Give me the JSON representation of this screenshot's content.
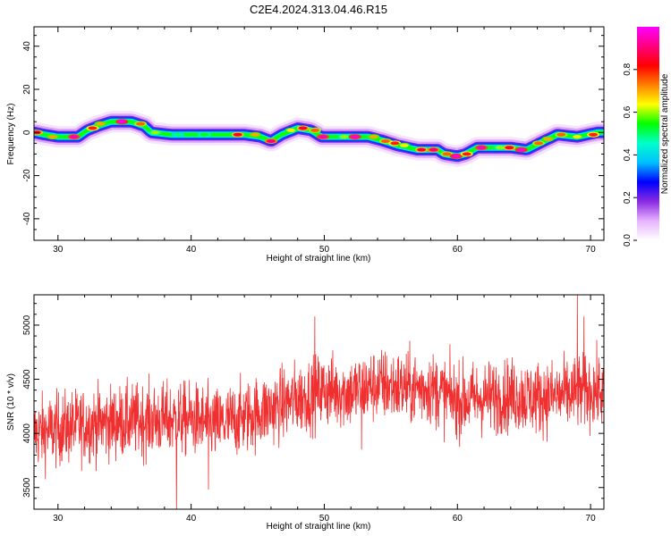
{
  "figure_title": "C2E4.2024.313.04.46.R15",
  "chart_data": [
    {
      "type": "heatmap",
      "title": "",
      "xlabel": "Height of straight line (km)",
      "ylabel": "Frequency (Hz)",
      "xlim": [
        28.2,
        71.0
      ],
      "ylim": [
        -50,
        49
      ],
      "x_ticks": [
        "30",
        "40",
        "50",
        "60",
        "70"
      ],
      "y_ticks": [
        "40",
        "20",
        "0",
        "-20",
        "-40"
      ],
      "colorbar": {
        "label": "Normalized spectral amplitude",
        "range": [
          0.0,
          1.0
        ],
        "ticks": [
          "0.0",
          "0.2",
          "0.4",
          "0.6",
          "0.8"
        ],
        "colors": [
          "#ffffff",
          "#e6b3ff",
          "#8a2be2",
          "#0000ff",
          "#00bfff",
          "#00ffcc",
          "#00ff00",
          "#ffff00",
          "#ff8000",
          "#ff0000",
          "#ff0080",
          "#ff00ff"
        ]
      },
      "ridge_trace": [
        {
          "x": 28.2,
          "y": 0
        },
        {
          "x": 29.0,
          "y": -1
        },
        {
          "x": 30.0,
          "y": -2
        },
        {
          "x": 31.5,
          "y": -2
        },
        {
          "x": 32.2,
          "y": 1
        },
        {
          "x": 33.0,
          "y": 3
        },
        {
          "x": 34.0,
          "y": 5
        },
        {
          "x": 35.5,
          "y": 5
        },
        {
          "x": 36.5,
          "y": 3
        },
        {
          "x": 37.0,
          "y": 0
        },
        {
          "x": 38.5,
          "y": -1
        },
        {
          "x": 42.0,
          "y": -1
        },
        {
          "x": 44.0,
          "y": -1
        },
        {
          "x": 45.2,
          "y": -2
        },
        {
          "x": 46.0,
          "y": -4
        },
        {
          "x": 46.8,
          "y": -1
        },
        {
          "x": 48.0,
          "y": 2
        },
        {
          "x": 49.0,
          "y": 1
        },
        {
          "x": 49.8,
          "y": -2
        },
        {
          "x": 52.0,
          "y": -2
        },
        {
          "x": 53.3,
          "y": -2
        },
        {
          "x": 54.5,
          "y": -4
        },
        {
          "x": 55.5,
          "y": -6
        },
        {
          "x": 57.0,
          "y": -8
        },
        {
          "x": 58.5,
          "y": -8
        },
        {
          "x": 59.0,
          "y": -10
        },
        {
          "x": 60.0,
          "y": -11
        },
        {
          "x": 60.6,
          "y": -10
        },
        {
          "x": 61.5,
          "y": -7
        },
        {
          "x": 63.0,
          "y": -7
        },
        {
          "x": 64.0,
          "y": -7
        },
        {
          "x": 65.2,
          "y": -8
        },
        {
          "x": 66.5,
          "y": -4
        },
        {
          "x": 67.5,
          "y": -1
        },
        {
          "x": 69.0,
          "y": -2
        },
        {
          "x": 70.5,
          "y": 0
        }
      ],
      "peak_cells": [
        {
          "x": 28.4,
          "y": 0,
          "v": 0.85
        },
        {
          "x": 29.6,
          "y": -2,
          "v": 0.7
        },
        {
          "x": 31.2,
          "y": -2,
          "v": 0.95
        },
        {
          "x": 32.6,
          "y": 2,
          "v": 0.8
        },
        {
          "x": 33.2,
          "y": 4,
          "v": 0.7
        },
        {
          "x": 34.8,
          "y": 5,
          "v": 0.98
        },
        {
          "x": 36.2,
          "y": 4,
          "v": 0.75
        },
        {
          "x": 37.3,
          "y": 0,
          "v": 0.6
        },
        {
          "x": 39.0,
          "y": -1,
          "v": 0.5
        },
        {
          "x": 41.0,
          "y": -1,
          "v": 0.55
        },
        {
          "x": 43.5,
          "y": -1,
          "v": 0.85
        },
        {
          "x": 44.8,
          "y": -1,
          "v": 0.7
        },
        {
          "x": 46.0,
          "y": -4,
          "v": 0.9
        },
        {
          "x": 47.5,
          "y": 1,
          "v": 0.65
        },
        {
          "x": 48.4,
          "y": 2,
          "v": 0.85
        },
        {
          "x": 49.3,
          "y": 1,
          "v": 0.75
        },
        {
          "x": 49.9,
          "y": -2,
          "v": 0.95
        },
        {
          "x": 51.5,
          "y": -2,
          "v": 0.6
        },
        {
          "x": 52.3,
          "y": -2,
          "v": 0.97
        },
        {
          "x": 53.7,
          "y": -2,
          "v": 0.7
        },
        {
          "x": 54.6,
          "y": -4,
          "v": 0.75
        },
        {
          "x": 55.3,
          "y": -5,
          "v": 0.8
        },
        {
          "x": 56.0,
          "y": -6,
          "v": 0.65
        },
        {
          "x": 57.3,
          "y": -8,
          "v": 0.85
        },
        {
          "x": 58.2,
          "y": -8,
          "v": 0.9
        },
        {
          "x": 59.2,
          "y": -10,
          "v": 0.75
        },
        {
          "x": 59.9,
          "y": -11,
          "v": 0.98
        },
        {
          "x": 60.7,
          "y": -10,
          "v": 0.8
        },
        {
          "x": 61.8,
          "y": -7,
          "v": 0.95
        },
        {
          "x": 63.2,
          "y": -7,
          "v": 0.6
        },
        {
          "x": 63.9,
          "y": -7,
          "v": 0.85
        },
        {
          "x": 64.8,
          "y": -8,
          "v": 0.97
        },
        {
          "x": 66.1,
          "y": -5,
          "v": 0.75
        },
        {
          "x": 66.8,
          "y": -3,
          "v": 0.7
        },
        {
          "x": 67.8,
          "y": -1,
          "v": 0.75
        },
        {
          "x": 69.0,
          "y": -2,
          "v": 0.65
        },
        {
          "x": 70.2,
          "y": -1,
          "v": 0.8
        }
      ]
    },
    {
      "type": "line",
      "title": "",
      "xlabel": "Height of straight line (km)",
      "ylabel": "SNR (10 * v/v)",
      "xlim": [
        28.2,
        71.0
      ],
      "ylim": [
        3300,
        5280
      ],
      "x_ticks": [
        "30",
        "40",
        "50",
        "60",
        "70"
      ],
      "y_ticks": [
        "5000",
        "4500",
        "4000",
        "3500"
      ],
      "series_color": "#f03030",
      "mean_trend": [
        {
          "x": 28.2,
          "y": 4000
        },
        {
          "x": 32.0,
          "y": 4080
        },
        {
          "x": 36.0,
          "y": 4120
        },
        {
          "x": 40.0,
          "y": 4130
        },
        {
          "x": 42.0,
          "y": 4080
        },
        {
          "x": 44.0,
          "y": 4150
        },
        {
          "x": 46.0,
          "y": 4230
        },
        {
          "x": 48.0,
          "y": 4320
        },
        {
          "x": 50.0,
          "y": 4400
        },
        {
          "x": 52.0,
          "y": 4380
        },
        {
          "x": 54.0,
          "y": 4450
        },
        {
          "x": 56.0,
          "y": 4420
        },
        {
          "x": 58.0,
          "y": 4420
        },
        {
          "x": 60.0,
          "y": 4300
        },
        {
          "x": 62.0,
          "y": 4330
        },
        {
          "x": 64.0,
          "y": 4350
        },
        {
          "x": 66.0,
          "y": 4330
        },
        {
          "x": 68.0,
          "y": 4350
        },
        {
          "x": 70.0,
          "y": 4400
        },
        {
          "x": 71.0,
          "y": 4380
        }
      ],
      "noise_amplitude": 170,
      "samples": 2000,
      "extremes": [
        {
          "x": 38.9,
          "y": 3300
        },
        {
          "x": 41.3,
          "y": 3480
        },
        {
          "x": 69.0,
          "y": 5280
        },
        {
          "x": 69.5,
          "y": 5080
        },
        {
          "x": 49.3,
          "y": 5080
        },
        {
          "x": 52.8,
          "y": 3850
        }
      ]
    }
  ]
}
